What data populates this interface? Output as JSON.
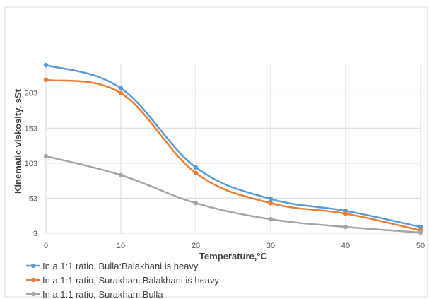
{
  "chart_data": {
    "type": "line",
    "xlabel": "Temperature,°C",
    "ylabel": "Kinematic viskosity, sSt",
    "x": [
      0,
      10,
      20,
      30,
      40,
      50
    ],
    "x_ticks": [
      "0",
      "10",
      "20",
      "30",
      "40",
      "50"
    ],
    "y_ticks": [
      "3",
      "53",
      "103",
      "153",
      "203"
    ],
    "xlim": [
      0,
      50
    ],
    "ylim": [
      3,
      243
    ],
    "grid": true,
    "legend_position": "bottom-left",
    "series": [
      {
        "name": "In a 1:1 ratio, Bulla:Balakhani is heavy",
        "color": "#5B9BD5",
        "values": [
          243,
          210,
          97,
          52,
          35,
          12
        ]
      },
      {
        "name": "In a 1:1 ratio, Surakhani:Balakhani is heavy",
        "color": "#ED7D31",
        "values": [
          222,
          203,
          89,
          46,
          31,
          7
        ]
      },
      {
        "name": "In a 1:1 ratio, Surakhani:Bulla",
        "color": "#A5A5A5",
        "values": [
          113,
          86,
          46,
          23,
          12,
          4
        ]
      }
    ]
  }
}
